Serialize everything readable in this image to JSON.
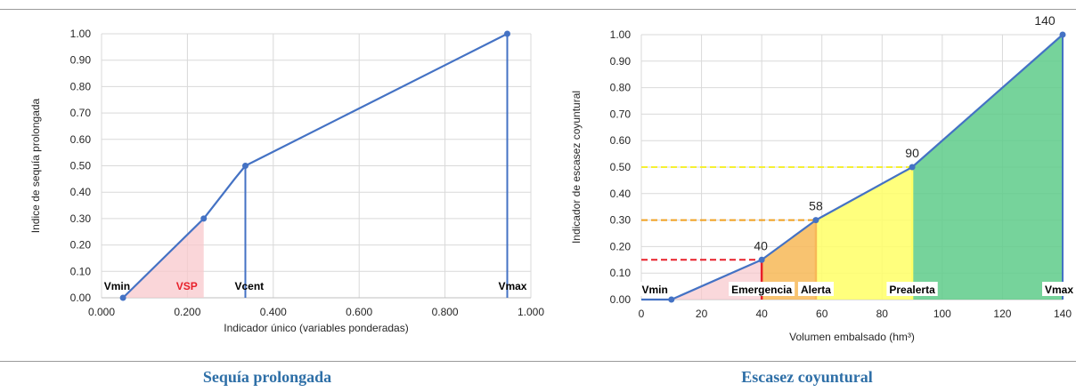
{
  "colors": {
    "line": "#4472c4",
    "grid": "#d9d9d9",
    "pink": "#f8c8cc",
    "orange": "#f7b857",
    "yellow": "#ffff66",
    "green": "#5ecb8a",
    "red": "#e8202a",
    "dash_red": "#e8202a",
    "dash_orange": "#f0a020",
    "dash_yellow": "#f5f032",
    "caption": "#2e6fa7"
  },
  "captions": {
    "left": "Sequía prolongada",
    "right": "Escasez coyuntural"
  },
  "chart_data": [
    {
      "type": "line",
      "title": "",
      "xlabel": "Indicador único (variables ponderadas)",
      "ylabel": "Indice de sequía prolongada",
      "xlim": [
        0,
        1
      ],
      "ylim": [
        0,
        1
      ],
      "x_ticks": [
        0,
        0.2,
        0.4,
        0.6,
        0.8,
        1.0
      ],
      "x_tick_labels": [
        "0.000",
        "0.200",
        "0.400",
        "0.600",
        "0.800",
        "1.000"
      ],
      "y_ticks": [
        0,
        0.1,
        0.2,
        0.3,
        0.4,
        0.5,
        0.6,
        0.7,
        0.8,
        0.9,
        1.0
      ],
      "y_tick_labels": [
        "0.00",
        "0.10",
        "0.20",
        "0.30",
        "0.40",
        "0.50",
        "0.60",
        "0.70",
        "0.80",
        "0.90",
        "1.00"
      ],
      "grid": true,
      "series": [
        {
          "values": [
            [
              0.05,
              0.0
            ],
            [
              0.238,
              0.3
            ],
            [
              0.31,
              0.45
            ],
            [
              0.335,
              0.5
            ],
            [
              0.945,
              1.0
            ]
          ]
        }
      ],
      "markers": [
        [
          0.05,
          0.0
        ],
        [
          0.238,
          0.3
        ],
        [
          0.335,
          0.5
        ],
        [
          0.945,
          1.0
        ]
      ],
      "shaded_region": {
        "from": [
          0.05,
          0.0
        ],
        "to": [
          0.238,
          0.3
        ]
      },
      "vertical_lines": [
        0.335,
        0.945
      ],
      "labels": [
        {
          "text": "Vmin",
          "x": 0.05
        },
        {
          "text": "VSP",
          "x": 0.238
        },
        {
          "text": "Vcent",
          "x": 0.335
        },
        {
          "text": "Vmax",
          "x": 0.945
        }
      ]
    },
    {
      "type": "area",
      "title": "",
      "xlabel": "Volumen embalsado (hm³)",
      "ylabel": "Indicador de escasez coyuntural",
      "xlim": [
        0,
        140
      ],
      "ylim": [
        0,
        1
      ],
      "x_ticks": [
        0,
        20,
        40,
        60,
        80,
        100,
        120,
        140
      ],
      "x_tick_labels": [
        "0",
        "20",
        "40",
        "60",
        "80",
        "100",
        "120",
        "140"
      ],
      "y_ticks": [
        0,
        0.1,
        0.2,
        0.3,
        0.4,
        0.5,
        0.6,
        0.7,
        0.8,
        0.9,
        1.0
      ],
      "y_tick_labels": [
        "0.00",
        "0.10",
        "0.20",
        "0.30",
        "0.40",
        "0.50",
        "0.60",
        "0.70",
        "0.80",
        "0.90",
        "1.00"
      ],
      "grid": true,
      "series": [
        {
          "values": [
            [
              0,
              0.0
            ],
            [
              10,
              0.0
            ],
            [
              40,
              0.15
            ],
            [
              58,
              0.3
            ],
            [
              90,
              0.5
            ],
            [
              140,
              1.0
            ]
          ]
        }
      ],
      "markers": [
        [
          10,
          0.0
        ],
        [
          40,
          0.15
        ],
        [
          58,
          0.3
        ],
        [
          90,
          0.5
        ],
        [
          140,
          1.0
        ]
      ],
      "zones": [
        {
          "from": 10,
          "to": 40,
          "color": "pink"
        },
        {
          "from": 40,
          "to": 58,
          "color": "orange"
        },
        {
          "from": 58,
          "to": 90,
          "color": "yellow"
        },
        {
          "from": 90,
          "to": 140,
          "color": "green"
        }
      ],
      "thresholds": [
        {
          "x": 40,
          "y": 0.15,
          "color": "dash_red",
          "vline": "red"
        },
        {
          "x": 58,
          "y": 0.3,
          "color": "dash_orange",
          "vline": "orange"
        },
        {
          "x": 90,
          "y": 0.5,
          "color": "dash_yellow",
          "vline": "yellow"
        }
      ],
      "point_labels": [
        {
          "text": "40",
          "x": 40,
          "y": 0.15
        },
        {
          "text": "58",
          "x": 58,
          "y": 0.3
        },
        {
          "text": "90",
          "x": 90,
          "y": 0.5
        },
        {
          "text": "140",
          "x": 140,
          "y": 1.0
        }
      ],
      "zone_labels": [
        {
          "text": "Vmin",
          "x": 10
        },
        {
          "text": "Emergencia",
          "x": 40
        },
        {
          "text": "Alerta",
          "x": 58
        },
        {
          "text": "Prealerta",
          "x": 90
        },
        {
          "text": "Vmax",
          "x": 140
        }
      ]
    }
  ]
}
